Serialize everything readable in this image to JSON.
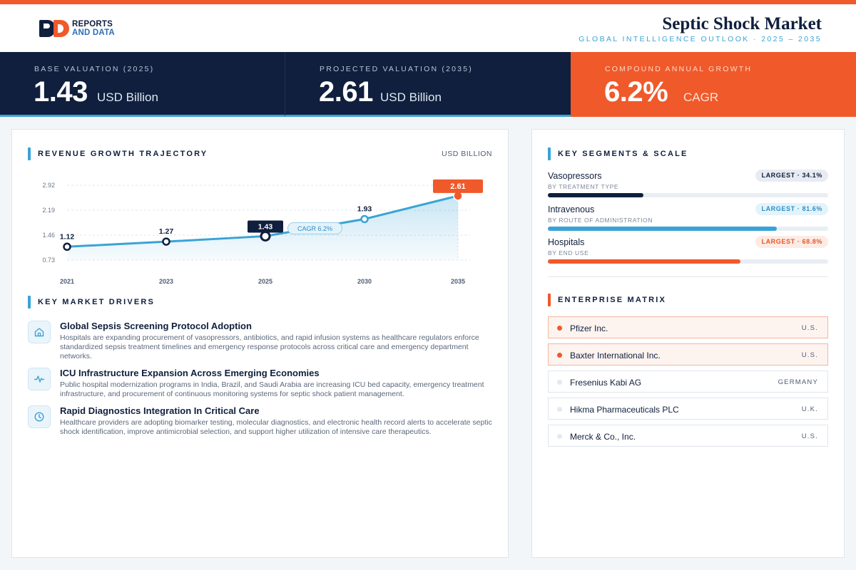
{
  "header": {
    "logo_line1": "REPORTS",
    "logo_line2": "AND DATA",
    "title": "Septic Shock Market",
    "subtitle": "GLOBAL INTELLIGENCE OUTLOOK  ·  2025 – 2035"
  },
  "kpis": [
    {
      "label": "BASE VALUATION (2025)",
      "value": "1.43",
      "unit": "USD Billion"
    },
    {
      "label": "PROJECTED VALUATION (2035)",
      "value": "2.61",
      "unit": "USD Billion"
    },
    {
      "label": "COMPOUND ANNUAL GROWTH",
      "value": "6.2%",
      "unit": "CAGR"
    }
  ],
  "revenue": {
    "title": "REVENUE GROWTH TRAJECTORY",
    "unit": "USD BILLION"
  },
  "chart_data": {
    "type": "line",
    "title": "REVENUE GROWTH TRAJECTORY",
    "ylabel": "USD BILLION",
    "categories": [
      "2021",
      "2023",
      "2025",
      "2030",
      "2035"
    ],
    "values": [
      1.12,
      1.27,
      1.43,
      1.93,
      2.61
    ],
    "value_labels": [
      "1.12",
      "1.27",
      "1.43",
      "1.93",
      "2.61"
    ],
    "yticks": [
      0.73,
      1.46,
      2.19,
      2.92
    ],
    "ytick_labels": [
      "0.73",
      "1.46",
      "2.19",
      "2.92"
    ],
    "ylim": [
      0.73,
      2.92
    ],
    "annotation": "CAGR 6.2%",
    "grid": true,
    "colors": {
      "line": "#3aa3d6",
      "highlight": "#0f1f3d",
      "end": "#f0592a"
    }
  },
  "drivers": {
    "title": "KEY MARKET DRIVERS",
    "items": [
      {
        "icon": "home-icon",
        "title": "Global Sepsis Screening Protocol Adoption",
        "desc": "Hospitals are expanding procurement of vasopressors, antibiotics, and rapid infusion systems as healthcare regulators enforce standardized sepsis treatment timelines and emergency response protocols across critical care and emergency department networks."
      },
      {
        "icon": "pulse-icon",
        "title": "ICU Infrastructure Expansion Across Emerging Economies",
        "desc": "Public hospital modernization programs in India, Brazil, and Saudi Arabia are increasing ICU bed capacity, emergency treatment infrastructure, and procurement of continuous monitoring systems for septic shock patient management."
      },
      {
        "icon": "clock-icon",
        "title": "Rapid Diagnostics Integration In Critical Care",
        "desc": "Healthcare providers are adopting biomarker testing, molecular diagnostics, and electronic health record alerts to accelerate septic shock identification, improve antimicrobial selection, and support higher utilization of intensive care therapeutics."
      }
    ]
  },
  "segments": {
    "title": "KEY SEGMENTS & SCALE",
    "items": [
      {
        "name": "Vasopressors",
        "sub": "BY TREATMENT TYPE",
        "badge": "LARGEST · 34.1%",
        "share": 0.341,
        "color": "#0f1f3d",
        "badge_bg": "#e8ecf2",
        "badge_fg": "#0f1f3d"
      },
      {
        "name": "Intravenous",
        "sub": "BY ROUTE OF ADMINISTRATION",
        "badge": "LARGEST · 81.6%",
        "share": 0.816,
        "color": "#3aa3d6",
        "badge_bg": "#e4f3fa",
        "badge_fg": "#2b8fc4"
      },
      {
        "name": "Hospitals",
        "sub": "BY END USE",
        "badge": "LARGEST · 68.8%",
        "share": 0.688,
        "color": "#f0592a",
        "badge_bg": "#fdebe4",
        "badge_fg": "#e4572a"
      }
    ]
  },
  "enterprise": {
    "title": "ENTERPRISE MATRIX",
    "items": [
      {
        "name": "Pfizer Inc.",
        "country": "U.S.",
        "highlight": true
      },
      {
        "name": "Baxter International Inc.",
        "country": "U.S.",
        "highlight": true
      },
      {
        "name": "Fresenius Kabi AG",
        "country": "GERMANY",
        "highlight": false
      },
      {
        "name": "Hikma Pharmaceuticals PLC",
        "country": "U.K.",
        "highlight": false
      },
      {
        "name": "Merck & Co., Inc.",
        "country": "U.S.",
        "highlight": false
      }
    ]
  }
}
